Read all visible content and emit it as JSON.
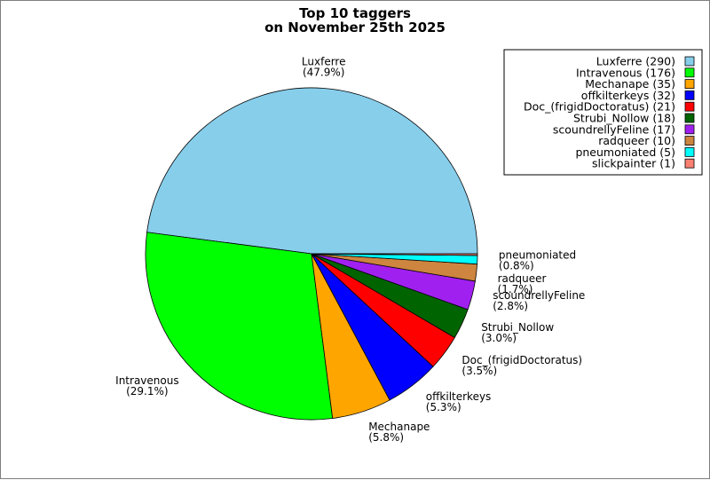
{
  "chart_data": {
    "type": "pie",
    "title": "Top 10 taggers",
    "subtitle": "on November 25th 2025",
    "legend_position": "top-right",
    "slices": [
      {
        "name": "Luxferre",
        "value": 290,
        "percent_label": "(47.9%)",
        "legend_label": "Luxferre (290)",
        "color": "#87ceeb"
      },
      {
        "name": "Intravenous",
        "value": 176,
        "percent_label": "(29.1%)",
        "legend_label": "Intravenous (176)",
        "color": "#00ff00"
      },
      {
        "name": "Mechanape",
        "value": 35,
        "percent_label": "(5.8%)",
        "legend_label": "Mechanape (35)",
        "color": "#ffa500"
      },
      {
        "name": "offkilterkeys",
        "value": 32,
        "percent_label": "(5.3%)",
        "legend_label": "offkilterkeys (32)",
        "color": "#0000ff"
      },
      {
        "name": "Doc_(frigidDoctoratus)",
        "value": 21,
        "percent_label": "(3.5%)",
        "legend_label": "Doc_(frigidDoctoratus) (21)",
        "color": "#ff0000"
      },
      {
        "name": "Strubi_Nollow",
        "value": 18,
        "percent_label": "(3.0%)",
        "legend_label": "Strubi_Nollow (18)",
        "color": "#006400"
      },
      {
        "name": "scoundrellyFeline",
        "value": 17,
        "percent_label": "(2.8%)",
        "legend_label": "scoundrellyFeline (17)",
        "color": "#a020f0"
      },
      {
        "name": "radqueer",
        "value": 10,
        "percent_label": "(1.7%)",
        "legend_label": "radqueer (10)",
        "color": "#cd853f"
      },
      {
        "name": "pneumoniated",
        "value": 5,
        "percent_label": "(0.8%)",
        "legend_label": "pneumoniated (5)",
        "color": "#00ffff"
      },
      {
        "name": "slickpainter",
        "value": 1,
        "percent_label": "",
        "legend_label": "slickpainter (1)",
        "color": "#fa8072"
      }
    ]
  }
}
